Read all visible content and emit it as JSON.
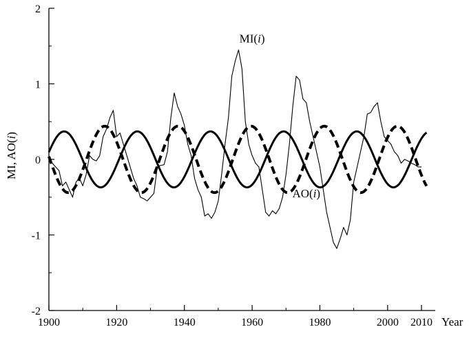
{
  "chart_data": {
    "type": "line",
    "title": "",
    "xlabel": "Year",
    "ylabel": "MI, AO(i)",
    "xlim": [
      1900,
      2012
    ],
    "ylim": [
      -2,
      2
    ],
    "x_ticks": [
      1900,
      1920,
      1940,
      1960,
      1980,
      2000,
      2010
    ],
    "x_tick_labels": [
      "1900",
      "1920",
      "1940",
      "1960",
      "1980",
      "2000",
      "2010"
    ],
    "y_ticks": [
      2,
      1,
      0,
      -1,
      -2
    ],
    "y_tick_labels": [
      "2",
      "1",
      "0",
      "-1",
      "-2"
    ],
    "grid": false,
    "annotations": [
      {
        "text": "MI(i)",
        "x": 1960,
        "y": 1.55
      },
      {
        "text": "AO(i)",
        "x": 1976,
        "y": -0.5
      }
    ],
    "series": [
      {
        "name": "MI(i)",
        "style": "thin-solid",
        "color": "#000000",
        "x": [
          1900,
          1901,
          1902,
          1903,
          1904,
          1905,
          1906,
          1907,
          1908,
          1909,
          1910,
          1911,
          1912,
          1913,
          1914,
          1915,
          1916,
          1917,
          1918,
          1919,
          1920,
          1921,
          1922,
          1923,
          1924,
          1925,
          1926,
          1927,
          1928,
          1929,
          1930,
          1931,
          1932,
          1933,
          1934,
          1935,
          1936,
          1937,
          1938,
          1939,
          1940,
          1941,
          1942,
          1943,
          1944,
          1945,
          1946,
          1947,
          1948,
          1949,
          1950,
          1951,
          1952,
          1953,
          1954,
          1955,
          1956,
          1957,
          1958,
          1959,
          1960,
          1961,
          1962,
          1963,
          1964,
          1965,
          1966,
          1967,
          1968,
          1969,
          1970,
          1971,
          1972,
          1973,
          1974,
          1975,
          1976,
          1977,
          1978,
          1979,
          1980,
          1981,
          1982,
          1983,
          1984,
          1985,
          1986,
          1987,
          1988,
          1989,
          1990,
          1991,
          1992,
          1993,
          1994,
          1995,
          1996,
          1997,
          1998,
          1999,
          2000,
          2001,
          2002,
          2003,
          2004,
          2005,
          2006,
          2007,
          2008,
          2009,
          2010
        ],
        "values": [
          0.0,
          -0.05,
          -0.1,
          -0.15,
          -0.35,
          -0.3,
          -0.4,
          -0.5,
          -0.3,
          -0.25,
          -0.35,
          -0.2,
          0.05,
          0.0,
          -0.02,
          0.05,
          0.3,
          0.4,
          0.55,
          0.65,
          0.3,
          0.35,
          0.2,
          0.05,
          -0.1,
          -0.25,
          -0.35,
          -0.5,
          -0.52,
          -0.55,
          -0.5,
          -0.45,
          -0.1,
          -0.08,
          -0.07,
          0.1,
          0.55,
          0.88,
          0.7,
          0.6,
          0.45,
          0.2,
          0.05,
          -0.25,
          -0.4,
          -0.5,
          -0.75,
          -0.72,
          -0.78,
          -0.7,
          -0.55,
          -0.2,
          0.2,
          0.55,
          1.1,
          1.3,
          1.45,
          1.2,
          0.5,
          0.2,
          0.05,
          -0.05,
          -0.1,
          -0.4,
          -0.7,
          -0.75,
          -0.68,
          -0.72,
          -0.65,
          -0.5,
          -0.2,
          0.2,
          0.7,
          1.1,
          1.05,
          0.8,
          0.75,
          0.5,
          0.3,
          0.1,
          -0.1,
          -0.4,
          -0.7,
          -0.9,
          -1.1,
          -1.18,
          -1.05,
          -0.9,
          -1.0,
          -0.8,
          -0.3,
          -0.1,
          0.1,
          0.3,
          0.6,
          0.62,
          0.7,
          0.75,
          0.5,
          0.3,
          0.25,
          0.2,
          0.1,
          0.05,
          -0.05,
          0.0,
          -0.02,
          -0.05,
          -0.07,
          -0.1,
          -0.1
        ],
        "_note": "x values are years; series approximate"
      },
      {
        "name": "AO(i)",
        "style": "dashed-thick",
        "color": "#000000",
        "amplitude": 0.44,
        "period_years": 21.6,
        "first_trough_year": 1905.7
      },
      {
        "name": "",
        "style": "solid-thick",
        "color": "#000000",
        "amplitude": 0.37,
        "period_years": 21.6,
        "first_peak_year": 1904.5
      }
    ]
  }
}
